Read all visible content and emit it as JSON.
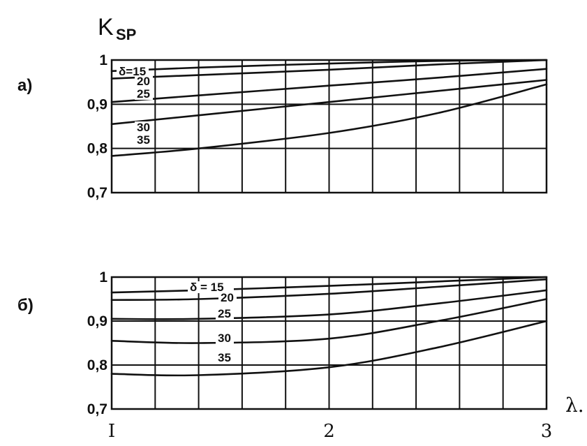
{
  "y_axis_label": "K",
  "y_axis_label_sub": "SP",
  "x_axis_label": "λ.",
  "chart_data": [
    {
      "type": "line",
      "panel_label": "а)",
      "title": "",
      "xlabel": "λ.",
      "ylabel": "K_SP",
      "xlim": [
        1,
        3
      ],
      "ylim": [
        0.7,
        1.0
      ],
      "x_gridlines": 10,
      "y_ticks": [
        {
          "value": 1.0,
          "label": "1"
        },
        {
          "value": 0.9,
          "label": "0,9"
        },
        {
          "value": 0.8,
          "label": "0,8"
        },
        {
          "value": 0.7,
          "label": "0,7"
        }
      ],
      "series": [
        {
          "name": "δ=15",
          "x": [
            1.0,
            1.4,
            2.0,
            2.5,
            3.0
          ],
          "y": [
            0.975,
            0.983,
            0.992,
            0.998,
            1.0
          ]
        },
        {
          "name": "20",
          "x": [
            1.0,
            1.4,
            2.0,
            2.5,
            3.0
          ],
          "y": [
            0.958,
            0.966,
            0.978,
            0.99,
            1.0
          ]
        },
        {
          "name": "25",
          "x": [
            1.0,
            1.4,
            2.0,
            2.5,
            3.0
          ],
          "y": [
            0.905,
            0.92,
            0.942,
            0.96,
            0.98
          ]
        },
        {
          "name": "30",
          "x": [
            1.0,
            1.4,
            2.0,
            2.5,
            3.0
          ],
          "y": [
            0.855,
            0.875,
            0.905,
            0.93,
            0.955
          ]
        },
        {
          "name": "35",
          "x": [
            1.0,
            1.4,
            2.0,
            2.5,
            3.0
          ],
          "y": [
            0.783,
            0.8,
            0.835,
            0.88,
            0.945
          ]
        }
      ],
      "curve_labels": [
        "δ=15",
        "20",
        "25",
        "30",
        "35"
      ]
    },
    {
      "type": "line",
      "panel_label": "б)",
      "title": "",
      "xlabel": "λ.",
      "ylabel": "K_SP",
      "xlim": [
        1,
        3
      ],
      "ylim": [
        0.7,
        1.0
      ],
      "x_gridlines": 10,
      "y_ticks": [
        {
          "value": 1.0,
          "label": "1"
        },
        {
          "value": 0.9,
          "label": "0,9"
        },
        {
          "value": 0.8,
          "label": "0,8"
        },
        {
          "value": 0.7,
          "label": "0,7"
        }
      ],
      "series": [
        {
          "name": "δ = 15",
          "x": [
            1.0,
            1.4,
            2.0,
            2.5,
            3.0
          ],
          "y": [
            0.965,
            0.97,
            0.98,
            0.99,
            1.0
          ]
        },
        {
          "name": "20",
          "x": [
            1.0,
            1.4,
            2.0,
            2.5,
            3.0
          ],
          "y": [
            0.948,
            0.95,
            0.962,
            0.978,
            0.995
          ]
        },
        {
          "name": "25",
          "x": [
            1.0,
            1.4,
            2.0,
            2.5,
            3.0
          ],
          "y": [
            0.905,
            0.905,
            0.915,
            0.94,
            0.97
          ]
        },
        {
          "name": "30",
          "x": [
            1.0,
            1.4,
            2.0,
            2.5,
            3.0
          ],
          "y": [
            0.855,
            0.85,
            0.86,
            0.9,
            0.95
          ]
        },
        {
          "name": "35",
          "x": [
            1.0,
            1.4,
            2.0,
            2.5,
            3.0
          ],
          "y": [
            0.78,
            0.777,
            0.795,
            0.84,
            0.9
          ]
        }
      ],
      "curve_labels": [
        "δ = 15",
        "20",
        "25",
        "30",
        "35"
      ],
      "x_ticks": [
        {
          "value": 1,
          "label": "I"
        },
        {
          "value": 2,
          "label": "2"
        },
        {
          "value": 3,
          "label": "3"
        }
      ]
    }
  ]
}
